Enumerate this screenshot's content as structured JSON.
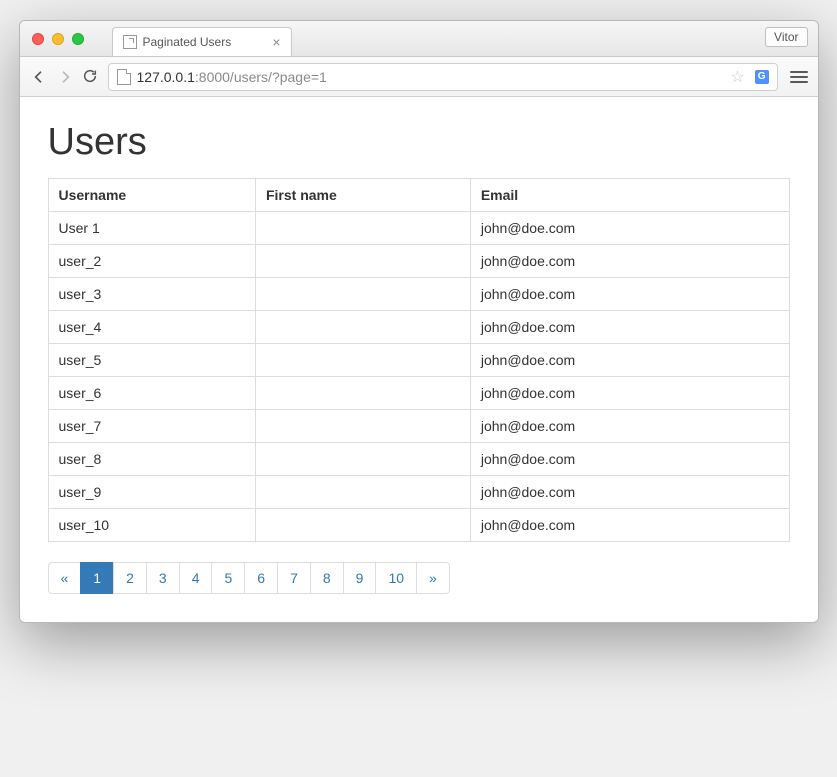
{
  "window": {
    "profile_name": "Vitor"
  },
  "tab": {
    "title": "Paginated Users"
  },
  "address_bar": {
    "host": "127.0.0.1",
    "rest": ":8000/users/?page=1"
  },
  "page": {
    "heading": "Users"
  },
  "table": {
    "columns": [
      "Username",
      "First name",
      "Email"
    ],
    "rows": [
      {
        "username": "User 1",
        "first_name": "",
        "email": "john@doe.com"
      },
      {
        "username": "user_2",
        "first_name": "",
        "email": "john@doe.com"
      },
      {
        "username": "user_3",
        "first_name": "",
        "email": "john@doe.com"
      },
      {
        "username": "user_4",
        "first_name": "",
        "email": "john@doe.com"
      },
      {
        "username": "user_5",
        "first_name": "",
        "email": "john@doe.com"
      },
      {
        "username": "user_6",
        "first_name": "",
        "email": "john@doe.com"
      },
      {
        "username": "user_7",
        "first_name": "",
        "email": "john@doe.com"
      },
      {
        "username": "user_8",
        "first_name": "",
        "email": "john@doe.com"
      },
      {
        "username": "user_9",
        "first_name": "",
        "email": "john@doe.com"
      },
      {
        "username": "user_10",
        "first_name": "",
        "email": "john@doe.com"
      }
    ]
  },
  "pagination": {
    "prev_label": "«",
    "next_label": "»",
    "pages": [
      "1",
      "2",
      "3",
      "4",
      "5",
      "6",
      "7",
      "8",
      "9",
      "10"
    ],
    "active_index": 0
  },
  "colors": {
    "accent": "#337ab7",
    "link": "#337ab7",
    "border": "#dddddd",
    "text": "#333333",
    "muted": "#8a8a8a"
  }
}
